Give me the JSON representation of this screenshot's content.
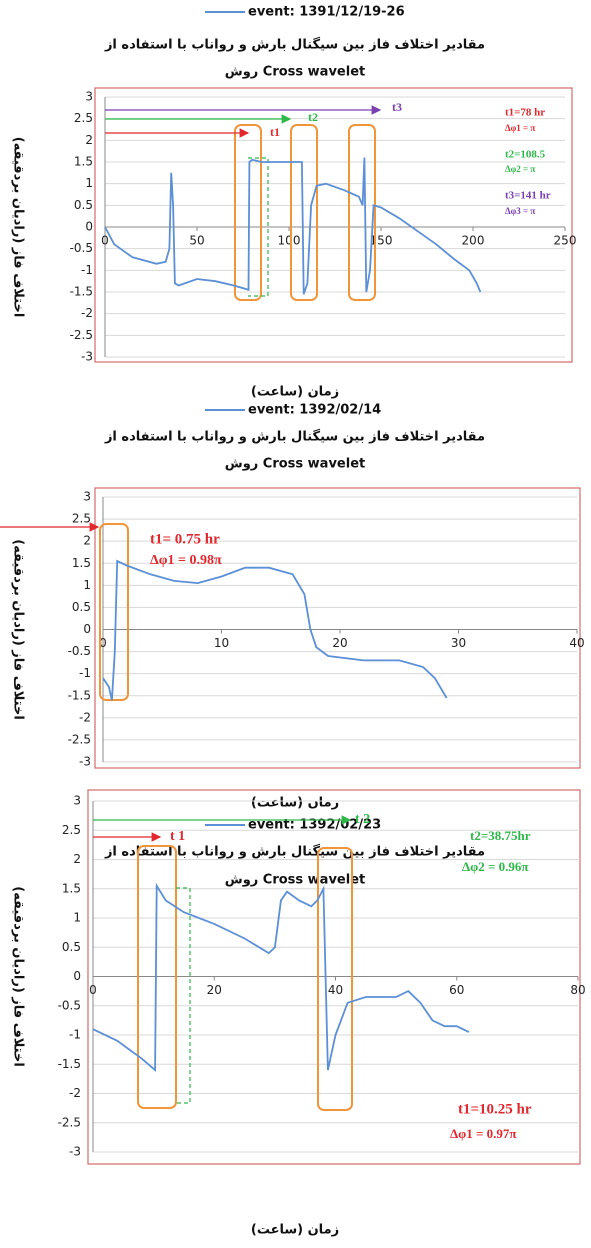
{
  "chart_data": [
    {
      "type": "line",
      "title": "مقادیر اختلاف فاز بین سیگنال بارش و رواناب با استفاده از",
      "subtitle": "روش  Cross wavelet",
      "x_label": "زمان (ساعت)",
      "y_label": "اختلاف فاز (رادیان بردقیقه)",
      "x": [
        0,
        5,
        15,
        28,
        33,
        35,
        36,
        37,
        38,
        40,
        50,
        60,
        70,
        78,
        78.5,
        80,
        85,
        95,
        107,
        108,
        110,
        112,
        115,
        120,
        130,
        138,
        140,
        141,
        142,
        144,
        146,
        150,
        160,
        170,
        180,
        190,
        198,
        202,
        204
      ],
      "series": [
        {
          "name": "event: 1391/12/19-26",
          "color": "#5b8fd6",
          "values": [
            0,
            -0.4,
            -0.7,
            -0.85,
            -0.8,
            -0.5,
            1.25,
            0.5,
            -1.3,
            -1.35,
            -1.2,
            -1.25,
            -1.35,
            -1.45,
            1.5,
            1.55,
            1.5,
            1.5,
            1.5,
            -1.55,
            -1.3,
            0.5,
            0.95,
            1.0,
            0.85,
            0.7,
            0.5,
            1.6,
            -1.5,
            -1.0,
            0.5,
            0.45,
            0.2,
            -0.1,
            -0.4,
            -0.75,
            -1.0,
            -1.3,
            -1.5
          ]
        }
      ],
      "xlim": [
        0,
        250
      ],
      "xticks": [
        0,
        50,
        100,
        150,
        200,
        250
      ],
      "ylim": [
        -3,
        3
      ],
      "yticks": [
        3,
        2.5,
        2,
        1.5,
        1,
        0.5,
        0,
        -0.5,
        -1,
        -1.5,
        -2,
        -2.5,
        -3
      ],
      "grid": true,
      "annotations": [
        "t1",
        "t2",
        "t3",
        "t1=78 hr",
        "Δφ1 = π",
        "t2=108.5",
        "Δφ2 = π",
        "t3=141 hr",
        "Δφ3 = π"
      ]
    },
    {
      "type": "line",
      "title": "مقادیر اختلاف فاز بین سیگنال بارش و رواناب با استفاده از",
      "subtitle": "روش  Cross wavelet",
      "x_label": "زمان (ساعت)",
      "y_label": "اختلاف فاز (رادیان بردقیقه)",
      "x": [
        0,
        0.5,
        0.75,
        1,
        1.2,
        2,
        4,
        6,
        8,
        10,
        12,
        14,
        16,
        17,
        17.5,
        18,
        19,
        22,
        25,
        27,
        28,
        29
      ],
      "series": [
        {
          "name": "event: 1392/02/14",
          "color": "#5b8fd6",
          "values": [
            -1.1,
            -1.3,
            -1.6,
            -0.5,
            1.55,
            1.45,
            1.25,
            1.1,
            1.05,
            1.2,
            1.4,
            1.4,
            1.25,
            0.8,
            0,
            -0.4,
            -0.6,
            -0.7,
            -0.7,
            -0.85,
            -1.1,
            -1.55
          ]
        }
      ],
      "xlim": [
        0,
        40
      ],
      "xticks": [
        0,
        10,
        20,
        30,
        40
      ],
      "ylim": [
        -3,
        3
      ],
      "yticks": [
        3,
        2.5,
        2,
        1.5,
        1,
        0.5,
        0,
        -0.5,
        -1,
        -1.5,
        -2,
        -2.5,
        -3
      ],
      "grid": true,
      "annotations": [
        "t1= 0.75 hr",
        "Δφ1 = 0.98π"
      ]
    },
    {
      "type": "line",
      "title": "مقادیر اختلاف فاز بین سیگنال بارش و رواناب با استفاده از",
      "subtitle": "روش  Cross wavelet",
      "x_label": "زمان (ساعت)",
      "y_label": "اختلاف فاز (رادیان بردقیقه)",
      "x": [
        0,
        4,
        8,
        10.25,
        10.5,
        12,
        15,
        20,
        25,
        29,
        30,
        31,
        32,
        34,
        36,
        37,
        38,
        38.75,
        40,
        42,
        45,
        50,
        52,
        54,
        56,
        58,
        60,
        62
      ],
      "series": [
        {
          "name": "event: 1392/02/23",
          "color": "#5b8fd6",
          "values": [
            -0.9,
            -1.1,
            -1.4,
            -1.6,
            1.55,
            1.3,
            1.1,
            0.9,
            0.65,
            0.4,
            0.5,
            1.3,
            1.45,
            1.3,
            1.2,
            1.3,
            1.5,
            -1.6,
            -1.0,
            -0.45,
            -0.35,
            -0.35,
            -0.25,
            -0.45,
            -0.75,
            -0.85,
            -0.85,
            -0.95
          ]
        }
      ],
      "xlim": [
        0,
        80
      ],
      "xticks": [
        0,
        20,
        40,
        60,
        80
      ],
      "ylim": [
        -3,
        3
      ],
      "yticks": [
        3,
        2.5,
        2,
        1.5,
        1,
        0.5,
        0,
        -0.5,
        -1,
        -1.5,
        -2,
        -2.5,
        -3
      ],
      "grid": true,
      "annotations": [
        "t 1",
        "t 2",
        "t2=38.75hr",
        "Δφ2 = 0.96π",
        "t1=10.25 hr",
        "Δφ1 = 0.97π"
      ]
    }
  ]
}
